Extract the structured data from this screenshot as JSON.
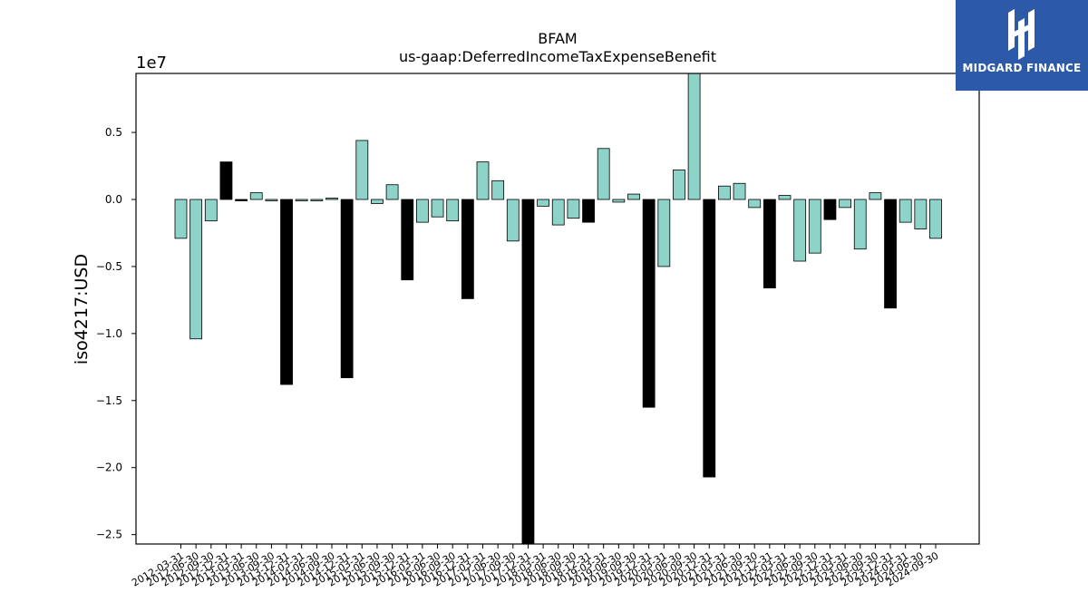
{
  "brand": {
    "name": "MIDGARD FINANCE",
    "color": "#2c5aa8"
  },
  "chart_data": {
    "type": "bar",
    "title": "BFAM",
    "subtitle": "us-gaap:DeferredIncomeTaxExpenseBenefit",
    "ylabel": "iso4217:USD",
    "xlabel": "",
    "scale_label": "1e7",
    "ylim": [
      -2.57,
      0.94
    ],
    "yticks": [
      0.5,
      0.0,
      -0.5,
      -1.0,
      -1.5,
      -2.0,
      -2.5
    ],
    "ytick_labels": [
      "0.5",
      "0.0",
      "−0.5",
      "−1.0",
      "−1.5",
      "−2.0",
      "−2.5"
    ],
    "grid": false,
    "colors": {
      "quarterly": "#8dd3c7",
      "annual": "#000000",
      "edge": "#000000"
    },
    "categories": [
      "2012-03-31",
      "2012-06-30",
      "2012-09-30",
      "2012-12-31",
      "2013-03-31",
      "2013-06-30",
      "2013-09-30",
      "2013-12-31",
      "2014-03-31",
      "2014-06-30",
      "2014-09-30",
      "2014-12-31",
      "2015-03-31",
      "2015-06-30",
      "2015-09-30",
      "2015-12-31",
      "2016-03-31",
      "2016-06-30",
      "2016-09-30",
      "2016-12-31",
      "2017-03-31",
      "2017-06-30",
      "2017-09-30",
      "2017-12-31",
      "2018-03-31",
      "2018-06-30",
      "2018-09-30",
      "2018-12-31",
      "2019-03-31",
      "2019-06-30",
      "2019-09-30",
      "2019-12-31",
      "2020-03-31",
      "2020-06-30",
      "2020-09-30",
      "2020-12-31",
      "2021-03-31",
      "2021-06-30",
      "2021-09-30",
      "2021-12-31",
      "2022-03-31",
      "2022-06-30",
      "2022-09-30",
      "2022-12-31",
      "2023-03-31",
      "2023-06-30",
      "2023-09-30",
      "2023-12-31",
      "2024-03-31",
      "2024-06-30",
      "2024-09-30"
    ],
    "values": [
      -0.29,
      -1.04,
      -0.16,
      0.28,
      -0.01,
      0.05,
      -0.01,
      -1.38,
      -0.01,
      -0.01,
      0.01,
      -1.33,
      0.44,
      -0.03,
      0.11,
      -0.6,
      -0.17,
      -0.13,
      -0.16,
      -0.74,
      0.28,
      0.14,
      -0.31,
      -2.57,
      -0.05,
      -0.19,
      -0.14,
      -0.17,
      0.38,
      -0.02,
      0.04,
      -1.55,
      -0.5,
      0.22,
      0.94,
      -2.07,
      0.1,
      0.12,
      -0.06,
      -0.66,
      0.03,
      -0.46,
      -0.4,
      -0.15,
      -0.06,
      -0.37,
      0.05,
      -0.81,
      -0.17,
      -0.22,
      -0.29
    ],
    "bar_kind": [
      "q",
      "q",
      "q",
      "a",
      "a",
      "q",
      "q",
      "a",
      "q",
      "q",
      "q",
      "a",
      "q",
      "q",
      "q",
      "a",
      "q",
      "q",
      "q",
      "a",
      "q",
      "q",
      "q",
      "a",
      "q",
      "q",
      "q",
      "a",
      "q",
      "q",
      "q",
      "a",
      "q",
      "q",
      "q",
      "a",
      "q",
      "q",
      "q",
      "a",
      "q",
      "q",
      "q",
      "a",
      "q",
      "q",
      "q",
      "a",
      "q",
      "q",
      "q"
    ]
  }
}
